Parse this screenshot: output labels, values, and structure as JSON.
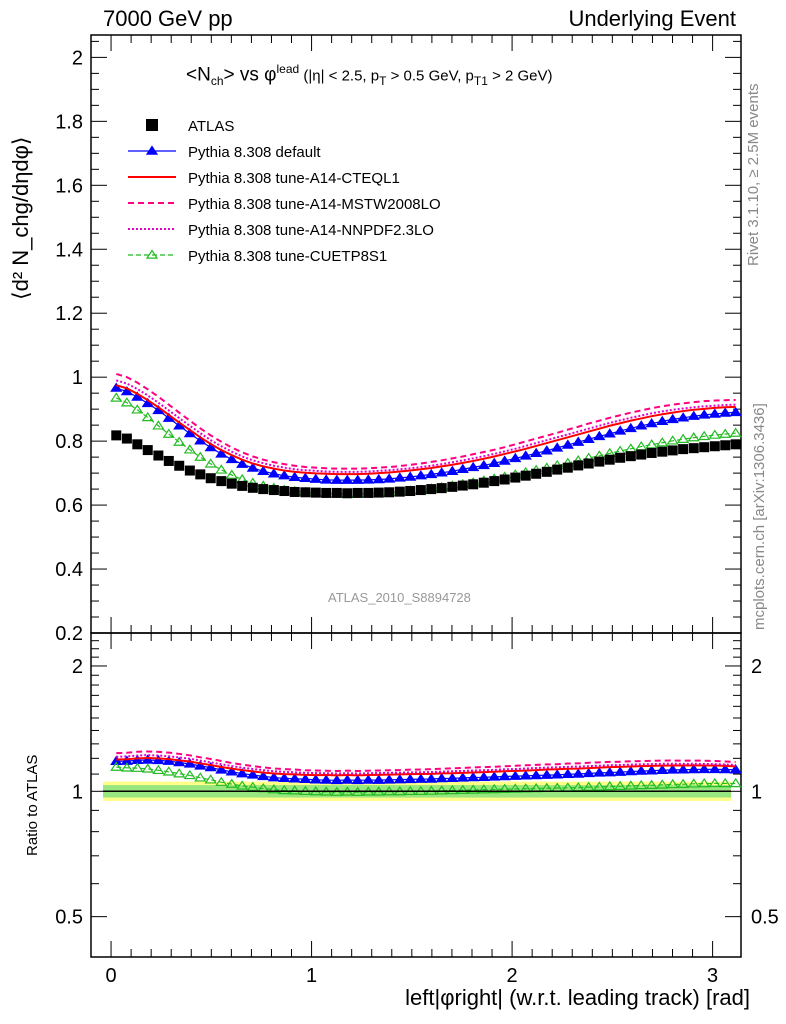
{
  "header": {
    "left": "7000 GeV pp",
    "right": "Underlying Event"
  },
  "side_labels": {
    "rivet": "Rivet 3.1.10, ≥ 2.5M events",
    "mcplots": "mcplots.cern.ch [arXiv:1306.3436]"
  },
  "analysis_id": "ATLAS_2010_S8894728",
  "title": {
    "main": "<N",
    "sub1": "ch",
    "mid": "> vs φ",
    "sup1": "lead",
    "cuts": " (|η| < 2.5, p",
    "sub2": "T",
    "cuts2": " > 0.5 GeV, p",
    "sub3": "T1",
    "cuts3": " > 2 GeV)"
  },
  "axes": {
    "x_label": "left|φright| (w.r.t. leading track) [rad]",
    "y_main_label": "⟨d² N_chg/dηdφ⟩",
    "y_ratio_label": "Ratio to ATLAS",
    "x_ticks": [
      "0",
      "1",
      "2",
      "3"
    ],
    "y_main_ticks": [
      "0.2",
      "0.4",
      "0.6",
      "0.8",
      "1",
      "1.2",
      "1.4",
      "1.6",
      "1.8",
      "2"
    ],
    "y_ratio_ticks": [
      "0.5",
      "1",
      "2"
    ]
  },
  "chart_data": {
    "type": "scatter",
    "x": [
      0.026,
      0.079,
      0.131,
      0.183,
      0.236,
      0.288,
      0.34,
      0.393,
      0.445,
      0.497,
      0.55,
      0.602,
      0.654,
      0.707,
      0.759,
      0.812,
      0.864,
      0.916,
      0.969,
      1.021,
      1.073,
      1.126,
      1.178,
      1.23,
      1.283,
      1.335,
      1.387,
      1.44,
      1.492,
      1.545,
      1.597,
      1.649,
      1.702,
      1.754,
      1.806,
      1.859,
      1.911,
      1.963,
      2.016,
      2.068,
      2.12,
      2.173,
      2.225,
      2.278,
      2.33,
      2.382,
      2.435,
      2.487,
      2.539,
      2.592,
      2.644,
      2.696,
      2.749,
      2.801,
      2.853,
      2.906,
      2.958,
      3.011,
      3.063,
      3.115
    ],
    "xlim": [
      -0.1,
      3.1416
    ],
    "main_ylim": [
      0.2,
      2.07
    ],
    "ratio_ylim": [
      0.4,
      2.4
    ],
    "ratio_scale": "log",
    "series": [
      {
        "name": "ATLAS",
        "style": "black-square",
        "values": [
          0.818,
          0.808,
          0.79,
          0.772,
          0.755,
          0.738,
          0.723,
          0.708,
          0.696,
          0.684,
          0.675,
          0.667,
          0.66,
          0.654,
          0.65,
          0.647,
          0.644,
          0.641,
          0.64,
          0.639,
          0.638,
          0.638,
          0.637,
          0.638,
          0.638,
          0.639,
          0.64,
          0.642,
          0.644,
          0.647,
          0.65,
          0.653,
          0.657,
          0.661,
          0.665,
          0.67,
          0.675,
          0.68,
          0.686,
          0.692,
          0.698,
          0.704,
          0.711,
          0.717,
          0.724,
          0.73,
          0.736,
          0.742,
          0.748,
          0.753,
          0.758,
          0.763,
          0.767,
          0.771,
          0.775,
          0.778,
          0.781,
          0.784,
          0.787,
          0.79
        ]
      },
      {
        "name": "Pythia 8.308 default",
        "style": "blue-triangle",
        "values": [
          0.966,
          0.955,
          0.938,
          0.918,
          0.896,
          0.872,
          0.848,
          0.824,
          0.801,
          0.78,
          0.76,
          0.743,
          0.728,
          0.716,
          0.706,
          0.698,
          0.692,
          0.687,
          0.684,
          0.681,
          0.679,
          0.678,
          0.678,
          0.678,
          0.679,
          0.68,
          0.682,
          0.685,
          0.688,
          0.692,
          0.696,
          0.701,
          0.706,
          0.712,
          0.718,
          0.724,
          0.731,
          0.738,
          0.746,
          0.754,
          0.762,
          0.77,
          0.779,
          0.788,
          0.797,
          0.806,
          0.815,
          0.823,
          0.832,
          0.84,
          0.848,
          0.855,
          0.862,
          0.868,
          0.873,
          0.878,
          0.882,
          0.885,
          0.888,
          0.89
        ]
      },
      {
        "name": "Pythia 8.308 tune-A14-CTEQL1",
        "style": "red-solid",
        "values": [
          0.975,
          0.965,
          0.948,
          0.928,
          0.906,
          0.882,
          0.858,
          0.835,
          0.812,
          0.791,
          0.772,
          0.756,
          0.742,
          0.73,
          0.721,
          0.714,
          0.708,
          0.704,
          0.701,
          0.699,
          0.698,
          0.697,
          0.697,
          0.697,
          0.698,
          0.7,
          0.702,
          0.705,
          0.708,
          0.712,
          0.716,
          0.721,
          0.726,
          0.732,
          0.738,
          0.745,
          0.752,
          0.76,
          0.768,
          0.776,
          0.785,
          0.794,
          0.803,
          0.812,
          0.821,
          0.83,
          0.839,
          0.848,
          0.856,
          0.864,
          0.871,
          0.878,
          0.884,
          0.889,
          0.894,
          0.898,
          0.901,
          0.904,
          0.906,
          0.907
        ]
      },
      {
        "name": "Pythia 8.308 tune-A14-MSTW2008LO",
        "style": "magenta-dashed",
        "values": [
          1.01,
          1.0,
          0.983,
          0.962,
          0.939,
          0.914,
          0.889,
          0.864,
          0.84,
          0.818,
          0.798,
          0.78,
          0.765,
          0.752,
          0.742,
          0.734,
          0.728,
          0.723,
          0.719,
          0.717,
          0.715,
          0.714,
          0.714,
          0.714,
          0.715,
          0.717,
          0.719,
          0.722,
          0.726,
          0.73,
          0.735,
          0.74,
          0.746,
          0.752,
          0.759,
          0.766,
          0.773,
          0.781,
          0.79,
          0.799,
          0.808,
          0.817,
          0.826,
          0.836,
          0.845,
          0.855,
          0.864,
          0.873,
          0.881,
          0.889,
          0.896,
          0.903,
          0.909,
          0.914,
          0.918,
          0.922,
          0.925,
          0.927,
          0.928,
          0.929
        ]
      },
      {
        "name": "Pythia 8.308 tune-A14-NNPDF2.3LO",
        "style": "magenta-dotted",
        "values": [
          0.99,
          0.98,
          0.963,
          0.943,
          0.92,
          0.896,
          0.872,
          0.848,
          0.825,
          0.803,
          0.784,
          0.767,
          0.752,
          0.74,
          0.731,
          0.723,
          0.717,
          0.712,
          0.709,
          0.707,
          0.705,
          0.704,
          0.704,
          0.704,
          0.705,
          0.707,
          0.709,
          0.712,
          0.715,
          0.719,
          0.723,
          0.728,
          0.734,
          0.74,
          0.746,
          0.753,
          0.76,
          0.768,
          0.776,
          0.785,
          0.794,
          0.803,
          0.812,
          0.821,
          0.83,
          0.839,
          0.848,
          0.857,
          0.865,
          0.873,
          0.88,
          0.887,
          0.893,
          0.898,
          0.902,
          0.906,
          0.909,
          0.911,
          0.913,
          0.914
        ]
      },
      {
        "name": "Pythia 8.308 tune-CUETP8S1",
        "style": "green-open-triangle",
        "values": [
          0.935,
          0.92,
          0.898,
          0.874,
          0.848,
          0.822,
          0.797,
          0.773,
          0.75,
          0.729,
          0.71,
          0.694,
          0.68,
          0.669,
          0.66,
          0.653,
          0.647,
          0.643,
          0.64,
          0.638,
          0.636,
          0.635,
          0.635,
          0.635,
          0.636,
          0.637,
          0.639,
          0.641,
          0.644,
          0.647,
          0.651,
          0.655,
          0.66,
          0.665,
          0.67,
          0.676,
          0.682,
          0.688,
          0.695,
          0.702,
          0.709,
          0.716,
          0.724,
          0.731,
          0.739,
          0.747,
          0.754,
          0.762,
          0.769,
          0.776,
          0.783,
          0.789,
          0.795,
          0.801,
          0.806,
          0.811,
          0.815,
          0.819,
          0.822,
          0.825
        ]
      }
    ]
  },
  "colors": {
    "atlas": "#000000",
    "default": "#0000ff",
    "cteql1": "#ff0000",
    "mstw": "#ff0080",
    "nnpdf": "#e000d0",
    "cuetp8s1": "#22bb22",
    "band_inner": "#98e680",
    "band_outer": "#ffff88"
  }
}
